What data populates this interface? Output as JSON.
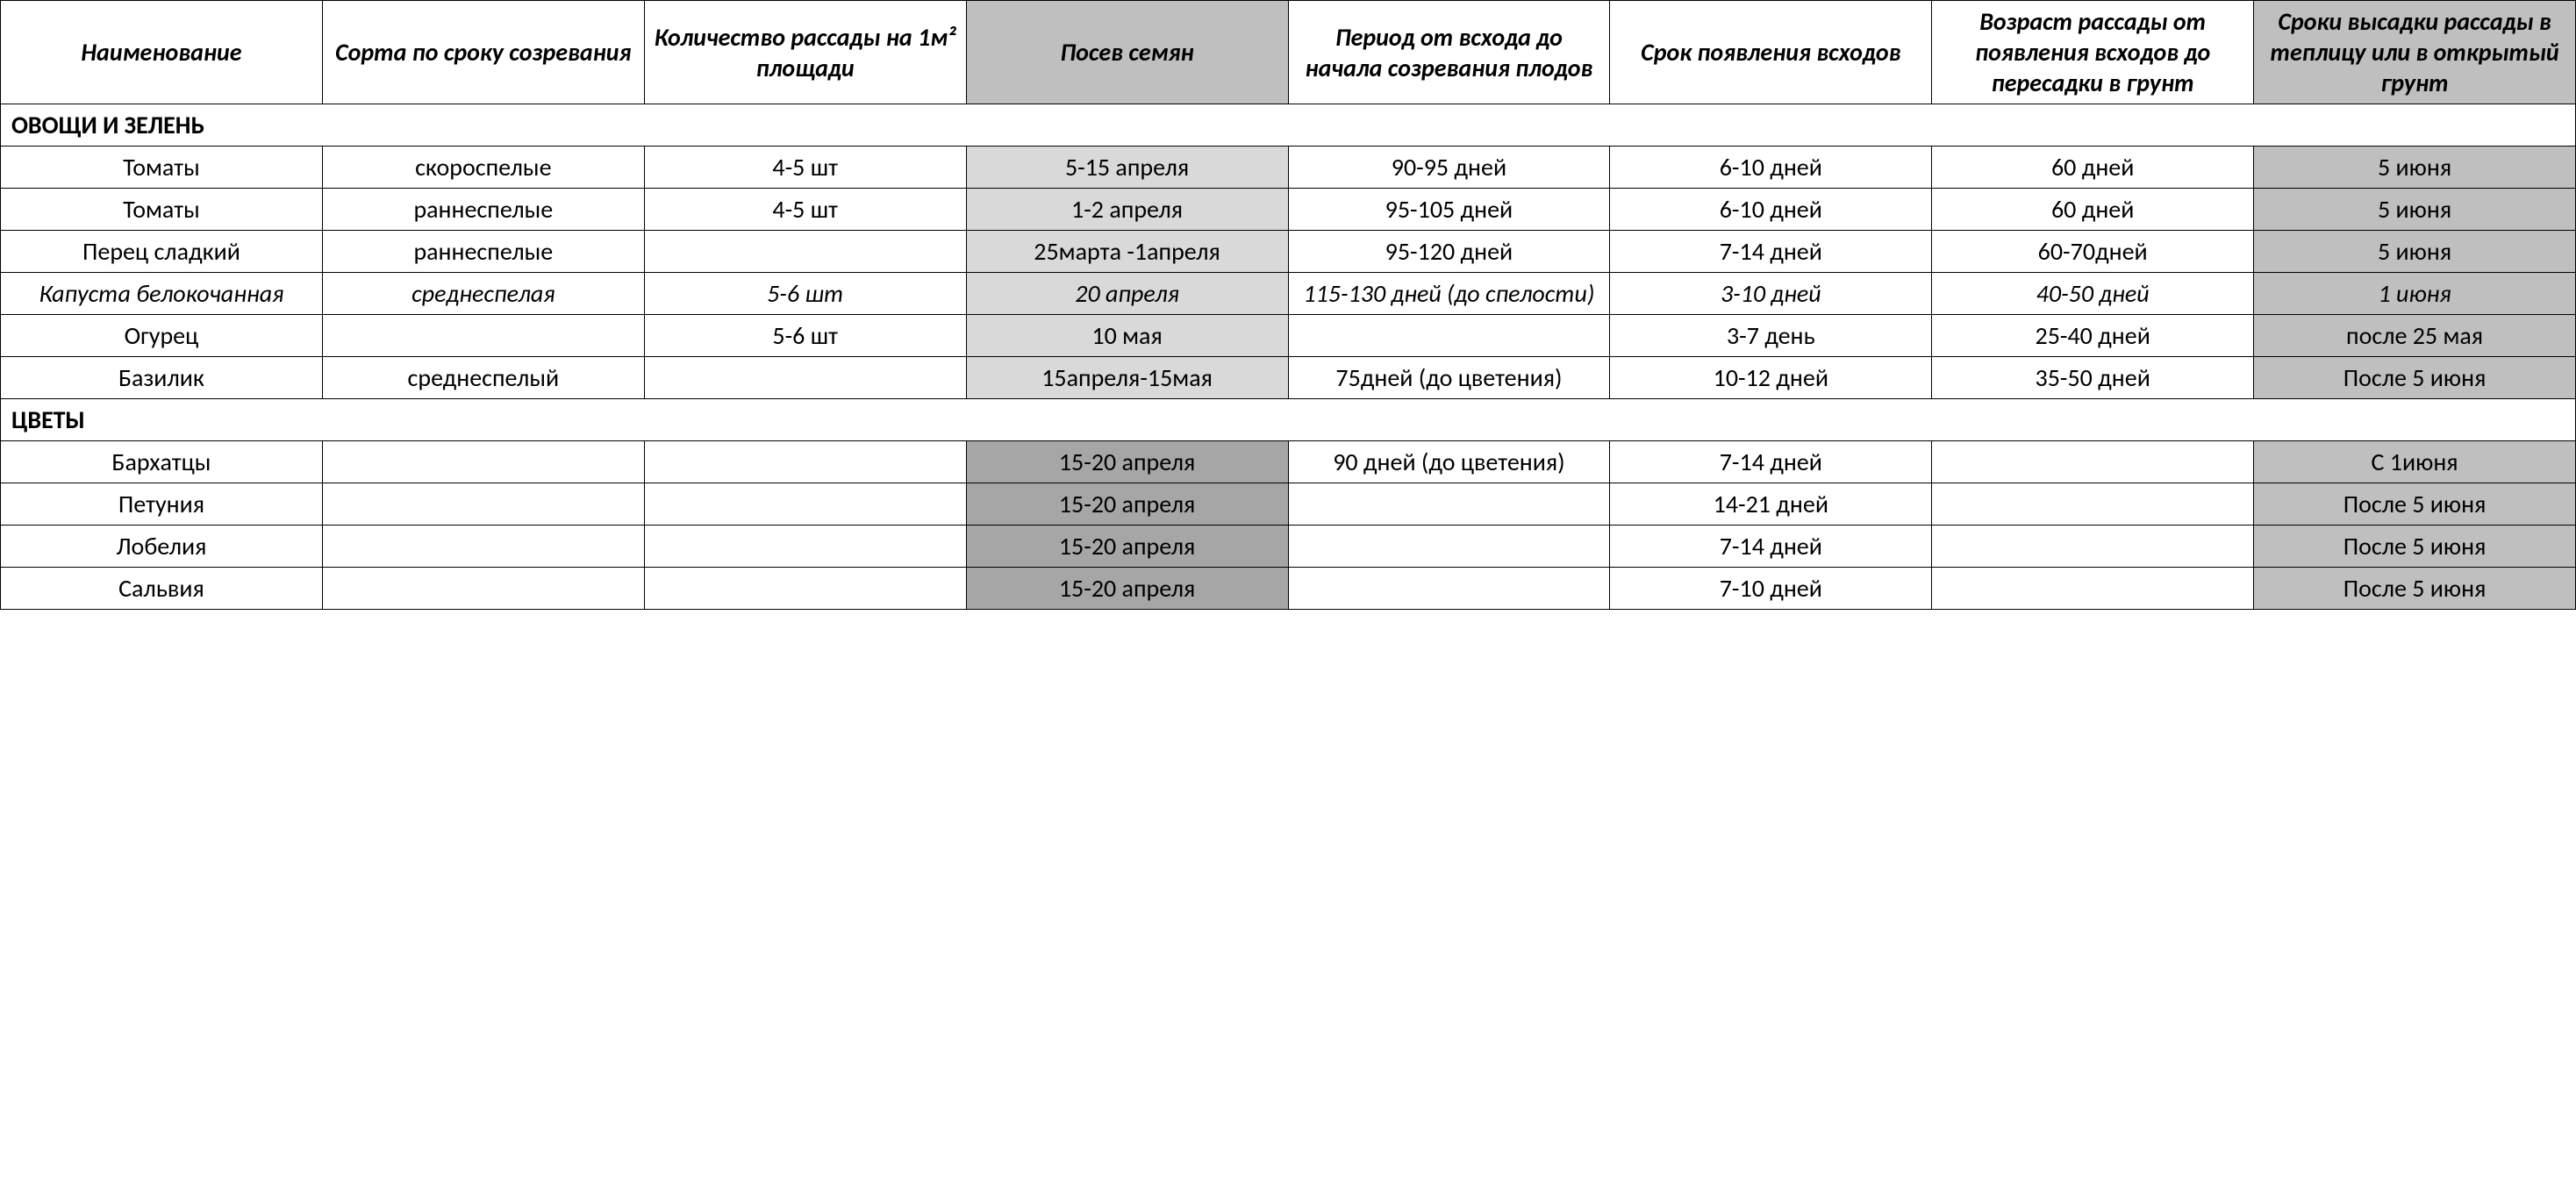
{
  "table": {
    "columns": [
      {
        "label": "Наименование",
        "shaded": false
      },
      {
        "label": "Сорта по сроку созревания",
        "shaded": false
      },
      {
        "label": "Количество рассады на 1м² площади",
        "shaded": false
      },
      {
        "label": "Посев семян",
        "shaded": true
      },
      {
        "label": "Период от всхода до начала созревания плодов",
        "shaded": false
      },
      {
        "label": "Срок появления всходов",
        "shaded": false
      },
      {
        "label": "Возраст рассады от появления всходов до пересадки в грунт",
        "shaded": false
      },
      {
        "label": "Сроки высадки рассады в теплицу или в открытый грунт",
        "shaded": true
      }
    ],
    "sections": [
      {
        "title": "ОВОЩИ И ЗЕЛЕНЬ",
        "rows": [
          {
            "italic": false,
            "cells": [
              "Томаты",
              "скороспелые",
              "4-5 шт",
              "5-15 апреля",
              "90-95 дней",
              "6-10 дней",
              "60 дней",
              "5 июня"
            ],
            "shading": [
              "",
              "",
              "",
              "light",
              "",
              "",
              "",
              "dark"
            ]
          },
          {
            "italic": false,
            "cells": [
              "Томаты",
              "раннеспелые",
              "4-5 шт",
              "1-2 апреля",
              "95-105 дней",
              "6-10 дней",
              "60 дней",
              "5 июня"
            ],
            "shading": [
              "",
              "",
              "",
              "light",
              "",
              "",
              "",
              "dark"
            ]
          },
          {
            "italic": false,
            "cells": [
              "Перец сладкий",
              "раннеспелые",
              "",
              "25марта -1апреля",
              "95-120 дней",
              "7-14 дней",
              "60-70дней",
              "5 июня"
            ],
            "shading": [
              "",
              "",
              "",
              "light",
              "",
              "",
              "",
              "dark"
            ]
          },
          {
            "italic": true,
            "cells": [
              "Капуста белокочанная",
              "среднеспелая",
              "5-6 шт",
              "20 апреля",
              "115-130 дней (до спелости)",
              "3-10 дней",
              "40-50 дней",
              "1 июня"
            ],
            "shading": [
              "",
              "",
              "",
              "light",
              "",
              "",
              "",
              "dark"
            ]
          },
          {
            "italic": false,
            "cells": [
              "Огурец",
              "",
              "5-6 шт",
              "10 мая",
              "",
              "3-7  день",
              "25-40 дней",
              "после 25 мая"
            ],
            "shading": [
              "",
              "",
              "",
              "light",
              "",
              "",
              "",
              "dark"
            ]
          },
          {
            "italic": false,
            "cells": [
              "Базилик",
              "среднеспелый",
              "",
              "15апреля-15мая",
              "75дней (до цветения)",
              "10-12 дней",
              "35-50 дней",
              "После 5 июня"
            ],
            "shading": [
              "",
              "",
              "",
              "light",
              "",
              "",
              "",
              "dark"
            ]
          }
        ]
      },
      {
        "title": "ЦВЕТЫ",
        "rows": [
          {
            "italic": false,
            "cells": [
              "Бархатцы",
              "",
              "",
              "15-20 апреля",
              "90 дней (до цветения)",
              "7-14 дней",
              "",
              "С 1июня"
            ],
            "shading": [
              "",
              "",
              "",
              "darker",
              "",
              "",
              "",
              "dark"
            ]
          },
          {
            "italic": false,
            "cells": [
              "Петуния",
              "",
              "",
              "15-20 апреля",
              "",
              "14-21 дней",
              "",
              "После 5 июня"
            ],
            "shading": [
              "",
              "",
              "",
              "darker",
              "",
              "",
              "",
              "dark"
            ]
          },
          {
            "italic": false,
            "cells": [
              "Лобелия",
              "",
              "",
              "15-20 апреля",
              "",
              "7-14 дней",
              "",
              "После 5 июня"
            ],
            "shading": [
              "",
              "",
              "",
              "darker",
              "",
              "",
              "",
              "dark"
            ]
          },
          {
            "italic": false,
            "cells": [
              "Сальвия",
              "",
              "",
              "15-20 апреля",
              "",
              "7-10 дней",
              "",
              "После 5 июня"
            ],
            "shading": [
              "",
              "",
              "",
              "darker",
              "",
              "",
              "",
              "dark"
            ]
          }
        ]
      }
    ],
    "styling": {
      "border_color": "#000000",
      "background_color": "#ffffff",
      "shaded_header_bg": "#bfbfbf",
      "shaded_light_bg": "#d9d9d9",
      "shaded_dark_bg": "#bfbfbf",
      "shaded_darker_bg": "#a6a6a6",
      "font_family": "Calibri",
      "cell_fontsize": 28,
      "header_fontweight": "bold",
      "header_fontstyle": "italic"
    }
  }
}
